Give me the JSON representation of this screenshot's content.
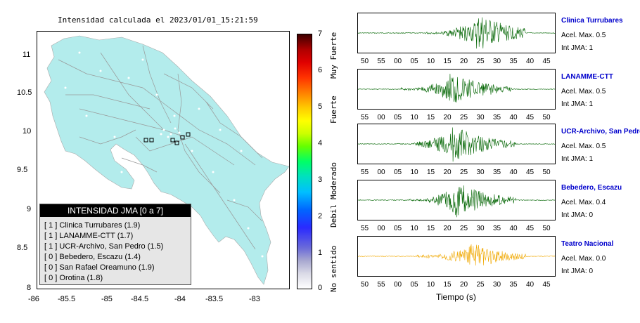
{
  "map": {
    "title": "Intensidad calculada el 2023/01/01_15:21:59",
    "yticks": [
      "11",
      "10.5",
      "10",
      "9.5",
      "9",
      "8.5",
      "8"
    ],
    "xticks": [
      "-86",
      "-85.5",
      "-85",
      "-84.5",
      "-84",
      "-83.5",
      "-83"
    ],
    "land_color": "#b3ecec",
    "station_marker_color": "#000000"
  },
  "legend": {
    "title": "INTENSIDAD JMA [0 a 7]",
    "rows": [
      "[ 1 ]  Clinica Turrubares (1.9)",
      "[ 1 ]  LANAMME-CTT (1.7)",
      "[ 1 ]  UCR-Archivo, San Pedro (1.5)",
      "[ 0 ]  Bebedero, Escazu (1.4)",
      "[ 0 ]  San Rafael Oreamuno (1.9)",
      "[ 0 ]  Orotina (1.8)"
    ]
  },
  "colorbar": {
    "ticks": [
      "7",
      "6",
      "5",
      "4",
      "3",
      "2",
      "1",
      "0"
    ],
    "words": [
      "Muy Fuerte",
      "Fuerte",
      "Moderado",
      "Debil",
      "No sentido"
    ]
  },
  "traces": [
    {
      "name": "Clinica Turrubares",
      "acel": "Acel. Max. 0.5",
      "jma": "Int JMA: 1",
      "color": "#006400",
      "ticks": [
        "50",
        "55",
        "00",
        "05",
        "10",
        "15",
        "20",
        "25",
        "30",
        "35",
        "40",
        "45"
      ]
    },
    {
      "name": "LANAMME-CTT",
      "acel": "Acel. Max. 0.5",
      "jma": "Int JMA: 1",
      "color": "#006400",
      "ticks": [
        "55",
        "00",
        "05",
        "10",
        "15",
        "20",
        "25",
        "30",
        "35",
        "40",
        "45",
        "50"
      ]
    },
    {
      "name": "UCR-Archivo, San Pedro",
      "acel": "Acel. Max. 0.5",
      "jma": "Int JMA: 1",
      "color": "#006400",
      "ticks": [
        "55",
        "00",
        "05",
        "10",
        "15",
        "20",
        "25",
        "30",
        "35",
        "40",
        "45",
        "50"
      ]
    },
    {
      "name": "Bebedero, Escazu",
      "acel": "Acel. Max. 0.4",
      "jma": "Int JMA: 0",
      "color": "#006400",
      "ticks": [
        "55",
        "00",
        "05",
        "10",
        "15",
        "20",
        "25",
        "30",
        "35",
        "40",
        "45",
        "50"
      ]
    },
    {
      "name": "Teatro Nacional",
      "acel": "Acel. Max. 0.0",
      "jma": "Int JMA: 0",
      "color": "#f0a800",
      "ticks": [
        "50",
        "55",
        "00",
        "05",
        "10",
        "15",
        "20",
        "25",
        "30",
        "35",
        "40",
        "45"
      ]
    }
  ],
  "xaxis_label": "Tiempo (s)"
}
